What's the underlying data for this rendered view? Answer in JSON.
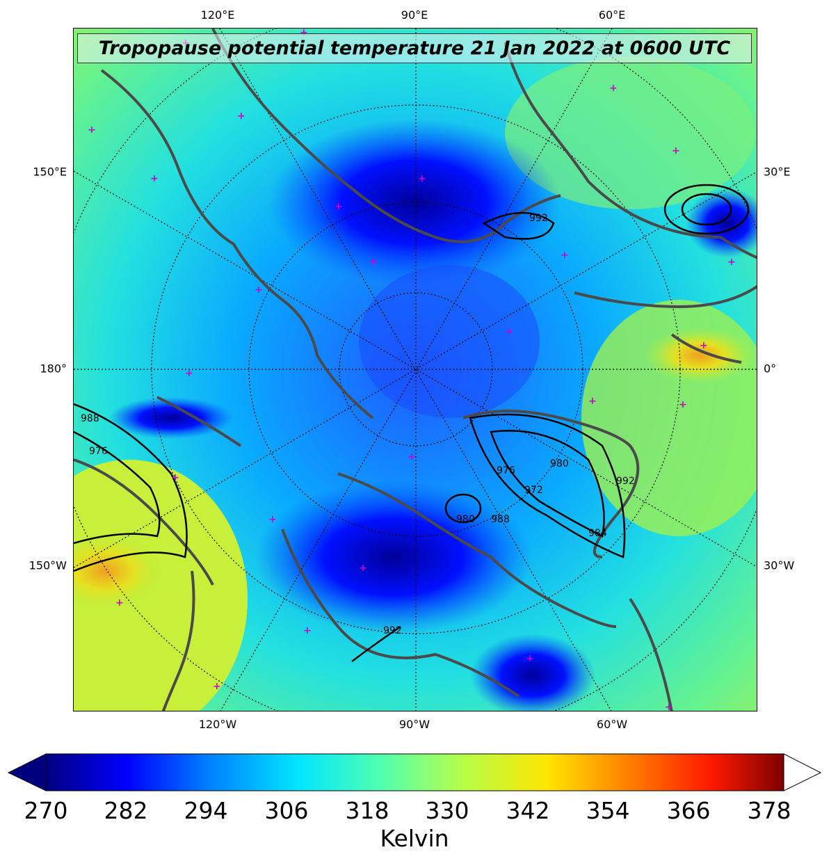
{
  "title": "Tropopause potential temperature 21 Jan 2022 at 0600 UTC",
  "longitude_labels": {
    "top": [
      "120°E",
      "90°E",
      "60°E"
    ],
    "bottom": [
      "120°W",
      "90°W",
      "60°W"
    ],
    "left": [
      "150°E",
      "180°",
      "150°W"
    ],
    "right": [
      "30°E",
      "0°",
      "30°W"
    ]
  },
  "colorbar": {
    "label": "Kelvin",
    "ticks": [
      "270",
      "282",
      "294",
      "306",
      "318",
      "330",
      "342",
      "354",
      "366",
      "378"
    ],
    "min": 270,
    "max": 381,
    "colors": [
      "#00007f",
      "#0000ff",
      "#007fff",
      "#00e5ff",
      "#4dffb2",
      "#b2ff4d",
      "#ffe500",
      "#ff7f00",
      "#ff1a00",
      "#7f0000"
    ]
  },
  "pressure_contour_labels": [
    "992",
    "988",
    "976",
    "976",
    "980",
    "992",
    "972",
    "980",
    "988",
    "984",
    "992"
  ],
  "colors": {
    "coastline": "#4a4a4a",
    "station_marker": "#cc00cc",
    "contour": "#000000"
  }
}
